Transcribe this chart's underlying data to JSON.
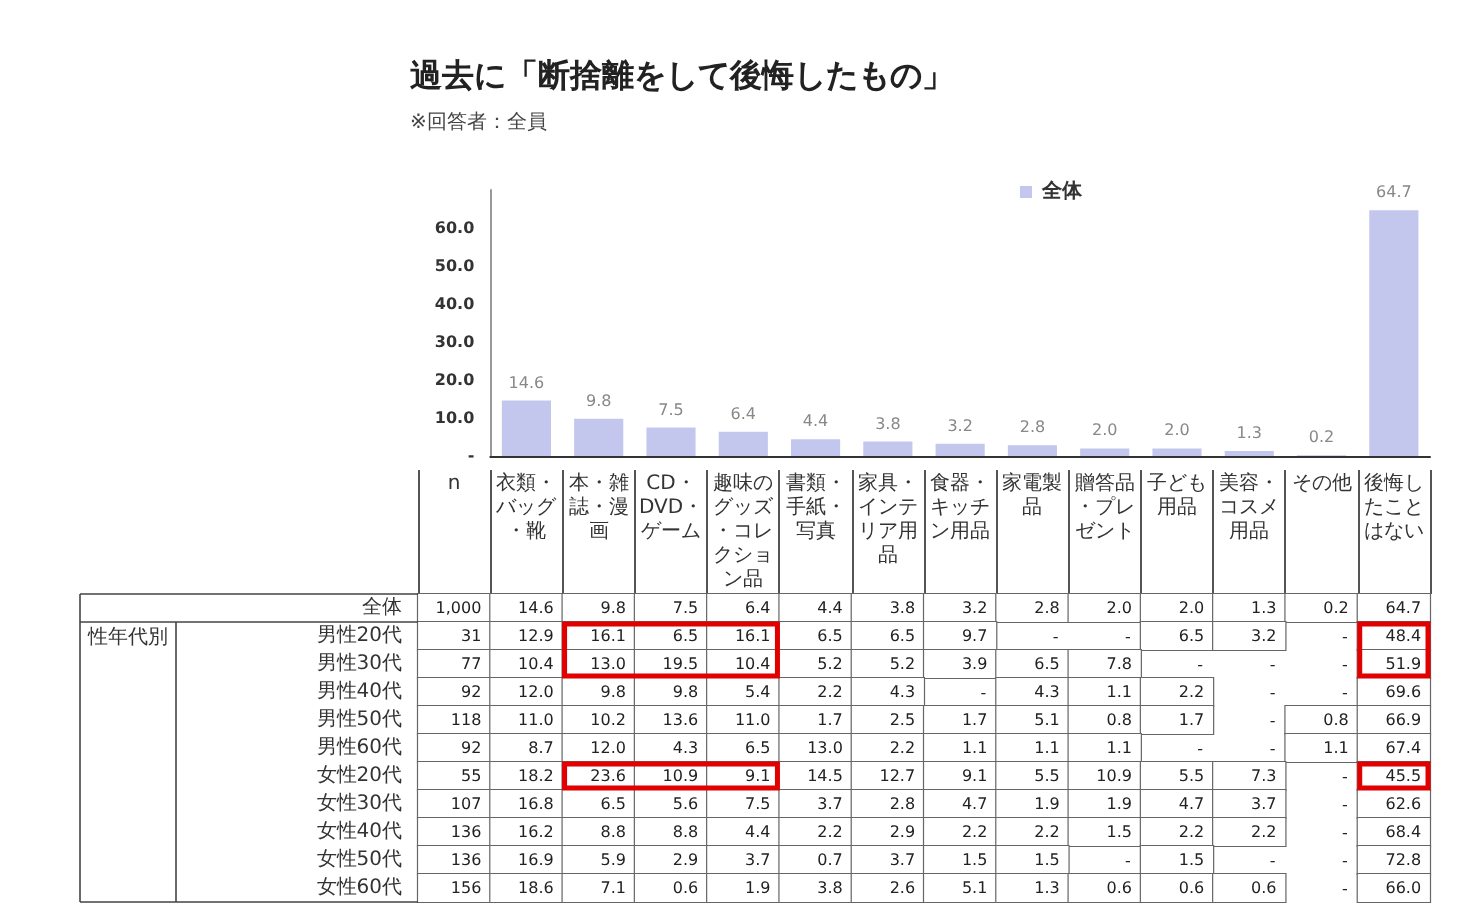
{
  "chart_data": [
    {
      "type": "bar",
      "title": "過去に「断捨離をして後悔したもの」",
      "subtitle": "※回答者：全員",
      "categories": [
        "衣類・バッグ・靴",
        "本・雑誌・漫画",
        "CD・DVD・ゲーム",
        "趣味のグッズ・コレクション品",
        "書類・手紙・写真",
        "家具・インテリア用品",
        "食器・キッチン用品",
        "家電製品",
        "贈答品・プレゼント",
        "子ども用品",
        "美容・コスメ用品",
        "その他",
        "後悔したことはない"
      ],
      "series": [
        {
          "name": "全体",
          "color": "#c3c7ed",
          "values": [
            14.6,
            9.8,
            7.5,
            6.4,
            4.4,
            3.8,
            3.2,
            2.8,
            2.0,
            2.0,
            1.3,
            0.2,
            64.7
          ],
          "value_labels": [
            "14.6",
            "9.8",
            "7.5",
            "6.4",
            "4.4",
            "3.8",
            "3.2",
            "2.8",
            "2.0",
            "2.0",
            "1.3",
            "0.2",
            "64.7"
          ]
        }
      ],
      "ylim": [
        0,
        70
      ],
      "yticks": [
        {
          "value": 0,
          "label": "-"
        },
        {
          "value": 10,
          "label": "10.0"
        },
        {
          "value": 20,
          "label": "20.0"
        },
        {
          "value": 30,
          "label": "30.0"
        },
        {
          "value": 40,
          "label": "40.0"
        },
        {
          "value": 50,
          "label": "50.0"
        },
        {
          "value": 60,
          "label": "60.0"
        }
      ],
      "legend": "top",
      "grid": false,
      "tick_labels": "y"
    },
    {
      "type": "heatmap",
      "annotations": [
        "性年代別"
      ],
      "categories": [
        "n",
        "衣類・バッグ・靴",
        "本・雑誌・漫画",
        "CD・DVD・ゲーム",
        "趣味のグッズ・コレクション品",
        "書類・手紙・写真",
        "家具・インテリア用品",
        "食器・キッチン用品",
        "家電製品",
        "贈答品・プレゼント",
        "子ども用品",
        "美容・コスメ用品",
        "その他",
        "後悔したことはない"
      ],
      "y_categories": [
        "全体",
        "男性20代",
        "男性30代",
        "男性40代",
        "男性50代",
        "男性60代",
        "女性20代",
        "女性30代",
        "女性40代",
        "女性50代",
        "女性60代"
      ],
      "cells": [
        [
          1000,
          14.6,
          9.8,
          7.5,
          6.4,
          4.4,
          3.8,
          3.2,
          2.8,
          2.0,
          2.0,
          1.3,
          0.2,
          64.7
        ],
        [
          31,
          12.9,
          16.1,
          6.5,
          16.1,
          6.5,
          6.5,
          9.7,
          null,
          null,
          6.5,
          3.2,
          null,
          48.4
        ],
        [
          77,
          10.4,
          13.0,
          19.5,
          10.4,
          5.2,
          5.2,
          3.9,
          6.5,
          7.8,
          null,
          null,
          null,
          51.9
        ],
        [
          92,
          12.0,
          9.8,
          9.8,
          5.4,
          2.2,
          4.3,
          null,
          4.3,
          1.1,
          2.2,
          null,
          null,
          69.6
        ],
        [
          118,
          11.0,
          10.2,
          13.6,
          11.0,
          1.7,
          2.5,
          1.7,
          5.1,
          0.8,
          1.7,
          null,
          0.8,
          66.9
        ],
        [
          92,
          8.7,
          12.0,
          4.3,
          6.5,
          13.0,
          2.2,
          1.1,
          1.1,
          1.1,
          null,
          null,
          1.1,
          67.4
        ],
        [
          55,
          18.2,
          23.6,
          10.9,
          9.1,
          14.5,
          12.7,
          9.1,
          5.5,
          10.9,
          5.5,
          7.3,
          null,
          45.5
        ],
        [
          107,
          16.8,
          6.5,
          5.6,
          7.5,
          3.7,
          2.8,
          4.7,
          1.9,
          1.9,
          4.7,
          3.7,
          null,
          62.6
        ],
        [
          136,
          16.2,
          8.8,
          8.8,
          4.4,
          2.2,
          2.9,
          2.2,
          2.2,
          1.5,
          2.2,
          2.2,
          null,
          68.4
        ],
        [
          136,
          16.9,
          5.9,
          2.9,
          3.7,
          0.7,
          3.7,
          1.5,
          1.5,
          null,
          1.5,
          null,
          null,
          72.8
        ],
        [
          156,
          18.6,
          7.1,
          0.6,
          1.9,
          3.8,
          2.6,
          5.1,
          1.3,
          0.6,
          0.6,
          0.6,
          null,
          66.0
        ]
      ],
      "cell_labels": [
        [
          "1,000",
          "14.6",
          "9.8",
          "7.5",
          "6.4",
          "4.4",
          "3.8",
          "3.2",
          "2.8",
          "2.0",
          "2.0",
          "1.3",
          "0.2",
          "64.7"
        ],
        [
          "31",
          "12.9",
          "16.1",
          "6.5",
          "16.1",
          "6.5",
          "6.5",
          "9.7",
          "-",
          "-",
          "6.5",
          "3.2",
          "-",
          "48.4"
        ],
        [
          "77",
          "10.4",
          "13.0",
          "19.5",
          "10.4",
          "5.2",
          "5.2",
          "3.9",
          "6.5",
          "7.8",
          "-",
          "-",
          "-",
          "51.9"
        ],
        [
          "92",
          "12.0",
          "9.8",
          "9.8",
          "5.4",
          "2.2",
          "4.3",
          "-",
          "4.3",
          "1.1",
          "2.2",
          "-",
          "-",
          "69.6"
        ],
        [
          "118",
          "11.0",
          "10.2",
          "13.6",
          "11.0",
          "1.7",
          "2.5",
          "1.7",
          "5.1",
          "0.8",
          "1.7",
          "-",
          "0.8",
          "66.9"
        ],
        [
          "92",
          "8.7",
          "12.0",
          "4.3",
          "6.5",
          "13.0",
          "2.2",
          "1.1",
          "1.1",
          "1.1",
          "-",
          "-",
          "1.1",
          "67.4"
        ],
        [
          "55",
          "18.2",
          "23.6",
          "10.9",
          "9.1",
          "14.5",
          "12.7",
          "9.1",
          "5.5",
          "10.9",
          "5.5",
          "7.3",
          "-",
          "45.5"
        ],
        [
          "107",
          "16.8",
          "6.5",
          "5.6",
          "7.5",
          "3.7",
          "2.8",
          "4.7",
          "1.9",
          "1.9",
          "4.7",
          "3.7",
          "-",
          "62.6"
        ],
        [
          "136",
          "16.2",
          "8.8",
          "8.8",
          "4.4",
          "2.2",
          "2.9",
          "2.2",
          "2.2",
          "1.5",
          "2.2",
          "2.2",
          "-",
          "68.4"
        ],
        [
          "136",
          "16.9",
          "5.9",
          "2.9",
          "3.7",
          "0.7",
          "3.7",
          "1.5",
          "1.5",
          "-",
          "1.5",
          "-",
          "-",
          "72.8"
        ],
        [
          "156",
          "18.6",
          "7.1",
          "0.6",
          "1.9",
          "3.8",
          "2.6",
          "5.1",
          "1.3",
          "0.6",
          "0.6",
          "0.6",
          "-",
          "66.0"
        ]
      ]
    }
  ]
}
